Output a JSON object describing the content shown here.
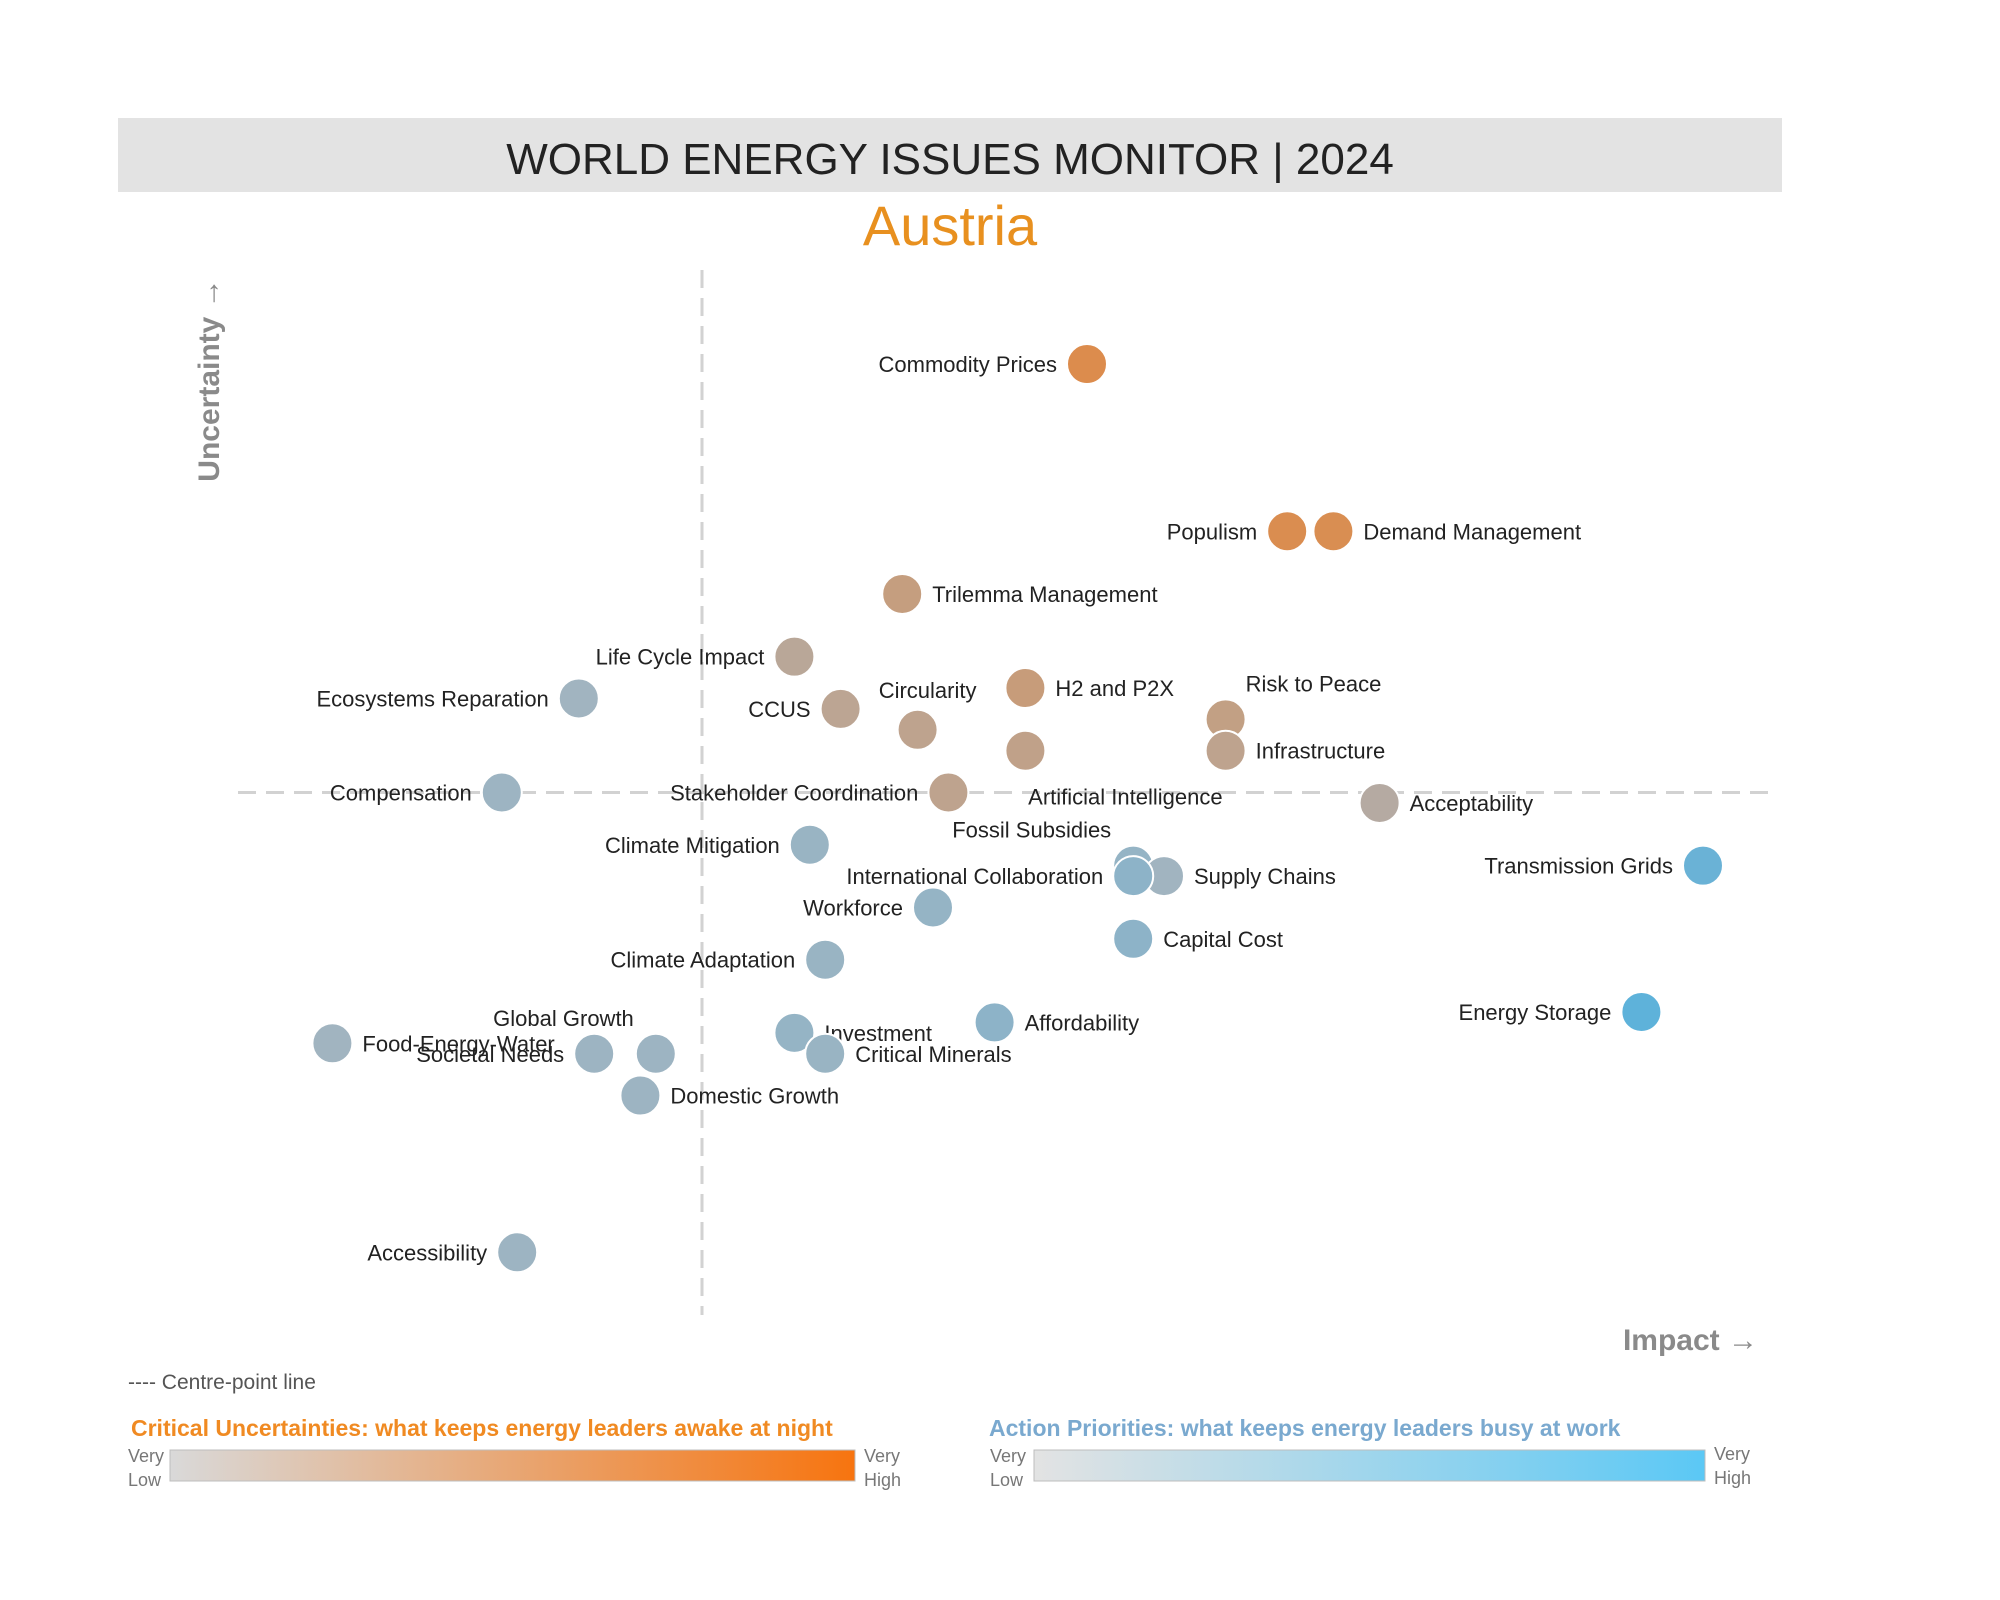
{
  "header": {
    "title": "WORLD ENERGY ISSUES MONITOR | 2024",
    "country": "Austria"
  },
  "colors": {
    "country": "#e8901f",
    "uncertainty_high": "#f7740f",
    "uncertainty_low": "#d9d9d9",
    "action_high": "#5bc8f5",
    "action_low": "#e3e3e3",
    "uncertainty_title": "#f08a22",
    "action_title": "#7aa9cf",
    "neutral": "#a9b4bd",
    "centre_line": "#d2d2d2"
  },
  "chart_data": {
    "type": "scatter",
    "title": "WORLD ENERGY ISSUES MONITOR | 2024",
    "subtitle": "Austria",
    "xlabel": "Impact →",
    "ylabel": "Uncertainty →",
    "xlim": [
      0,
      10
    ],
    "ylim": [
      0,
      10
    ],
    "centre": {
      "x": 3.0,
      "y": 5.0
    },
    "grid": false,
    "points": [
      {
        "name": "Commodity Prices",
        "impact": 5.5,
        "uncertainty": 9.1,
        "uncertainty_level": 0.95,
        "action_level": 0.0,
        "label_side": "left"
      },
      {
        "name": "Populism",
        "impact": 6.8,
        "uncertainty": 7.5,
        "uncertainty_level": 0.92,
        "action_level": 0.0,
        "label_side": "left"
      },
      {
        "name": "Demand Management",
        "impact": 7.1,
        "uncertainty": 7.5,
        "uncertainty_level": 0.9,
        "action_level": 0.0,
        "label_side": "right"
      },
      {
        "name": "Trilemma Management",
        "impact": 4.3,
        "uncertainty": 6.9,
        "uncertainty_level": 0.45,
        "action_level": 0.0,
        "label_side": "right"
      },
      {
        "name": "Life Cycle Impact",
        "impact": 3.6,
        "uncertainty": 6.3,
        "uncertainty_level": 0.2,
        "action_level": 0.0,
        "label_side": "left"
      },
      {
        "name": "Ecosystems Reparation",
        "impact": 2.2,
        "uncertainty": 5.9,
        "uncertainty_level": 0.0,
        "action_level": 0.1,
        "label_side": "left"
      },
      {
        "name": "CCUS",
        "impact": 3.9,
        "uncertainty": 5.8,
        "uncertainty_level": 0.25,
        "action_level": 0.0,
        "label_side": "left"
      },
      {
        "name": "Circularity",
        "impact": 4.4,
        "uncertainty": 5.6,
        "uncertainty_level": 0.3,
        "action_level": 0.0,
        "label_side": "above"
      },
      {
        "name": "H2 and P2X",
        "impact": 5.1,
        "uncertainty": 6.0,
        "uncertainty_level": 0.5,
        "action_level": 0.0,
        "label_side": "right"
      },
      {
        "name": "Risk to Peace",
        "impact": 6.4,
        "uncertainty": 5.7,
        "uncertainty_level": 0.4,
        "action_level": 0.0,
        "label_side": "above-right"
      },
      {
        "name": "Infrastructure",
        "impact": 6.4,
        "uncertainty": 5.4,
        "uncertainty_level": 0.3,
        "action_level": 0.0,
        "label_side": "right"
      },
      {
        "name": "Artificial Intelligence",
        "impact": 5.1,
        "uncertainty": 5.4,
        "uncertainty_level": 0.35,
        "action_level": 0.0,
        "label_side": "below"
      },
      {
        "name": "Stakeholder Coordination",
        "impact": 4.6,
        "uncertainty": 5.0,
        "uncertainty_level": 0.3,
        "action_level": 0.0,
        "label_side": "left"
      },
      {
        "name": "Compensation",
        "impact": 1.7,
        "uncertainty": 5.0,
        "uncertainty_level": 0.0,
        "action_level": 0.15,
        "label_side": "left"
      },
      {
        "name": "Acceptability",
        "impact": 7.4,
        "uncertainty": 4.9,
        "uncertainty_level": 0.1,
        "action_level": 0.05,
        "label_side": "right"
      },
      {
        "name": "Climate Mitigation",
        "impact": 3.7,
        "uncertainty": 4.5,
        "uncertainty_level": 0.0,
        "action_level": 0.2,
        "label_side": "left"
      },
      {
        "name": "Fossil Subsidies",
        "impact": 5.8,
        "uncertainty": 4.3,
        "uncertainty_level": 0.0,
        "action_level": 0.25,
        "label_side": "above-left"
      },
      {
        "name": "Supply Chains",
        "impact": 6.0,
        "uncertainty": 4.2,
        "uncertainty_level": 0.0,
        "action_level": 0.1,
        "label_side": "right"
      },
      {
        "name": "International Collaboration",
        "impact": 5.8,
        "uncertainty": 4.2,
        "uncertainty_level": 0.0,
        "action_level": 0.35,
        "label_side": "left"
      },
      {
        "name": "Transmission Grids",
        "impact": 9.5,
        "uncertainty": 4.3,
        "uncertainty_level": 0.0,
        "action_level": 0.8,
        "label_side": "left"
      },
      {
        "name": "Workforce",
        "impact": 4.5,
        "uncertainty": 3.9,
        "uncertainty_level": 0.0,
        "action_level": 0.25,
        "label_side": "left"
      },
      {
        "name": "Capital Cost",
        "impact": 5.8,
        "uncertainty": 3.6,
        "uncertainty_level": 0.0,
        "action_level": 0.35,
        "label_side": "right"
      },
      {
        "name": "Climate Adaptation",
        "impact": 3.8,
        "uncertainty": 3.4,
        "uncertainty_level": 0.0,
        "action_level": 0.2,
        "label_side": "left"
      },
      {
        "name": "Energy Storage",
        "impact": 9.1,
        "uncertainty": 2.9,
        "uncertainty_level": 0.0,
        "action_level": 0.95,
        "label_side": "left"
      },
      {
        "name": "Affordability",
        "impact": 4.9,
        "uncertainty": 2.8,
        "uncertainty_level": 0.0,
        "action_level": 0.35,
        "label_side": "right"
      },
      {
        "name": "Investment",
        "impact": 3.6,
        "uncertainty": 2.7,
        "uncertainty_level": 0.0,
        "action_level": 0.25,
        "label_side": "right"
      },
      {
        "name": "Food-Energy-Water",
        "impact": 0.6,
        "uncertainty": 2.6,
        "uncertainty_level": 0.0,
        "action_level": 0.1,
        "label_side": "right"
      },
      {
        "name": "Global Growth",
        "impact": 2.7,
        "uncertainty": 2.5,
        "uncertainty_level": 0.0,
        "action_level": 0.15,
        "label_side": "above-left"
      },
      {
        "name": "Societal Needs",
        "impact": 2.3,
        "uncertainty": 2.5,
        "uncertainty_level": 0.0,
        "action_level": 0.15,
        "label_side": "left"
      },
      {
        "name": "Critical Minerals",
        "impact": 3.8,
        "uncertainty": 2.5,
        "uncertainty_level": 0.0,
        "action_level": 0.2,
        "label_side": "right"
      },
      {
        "name": "Domestic Growth",
        "impact": 2.6,
        "uncertainty": 2.1,
        "uncertainty_level": 0.0,
        "action_level": 0.15,
        "label_side": "right"
      },
      {
        "name": "Accessibility",
        "impact": 1.8,
        "uncertainty": 0.6,
        "uncertainty_level": 0.0,
        "action_level": 0.15,
        "label_side": "left"
      }
    ]
  },
  "legend": {
    "centre_note": "---- Centre-point line",
    "uncertainty": {
      "title": "Critical Uncertainties: what keeps energy leaders awake at night",
      "low": [
        "Very",
        "Low"
      ],
      "high": [
        "Very",
        "High"
      ]
    },
    "action": {
      "title": "Action Priorities: what keeps energy leaders busy at work",
      "low": [
        "Very",
        "Low"
      ],
      "high": [
        "Very",
        "High"
      ]
    }
  }
}
